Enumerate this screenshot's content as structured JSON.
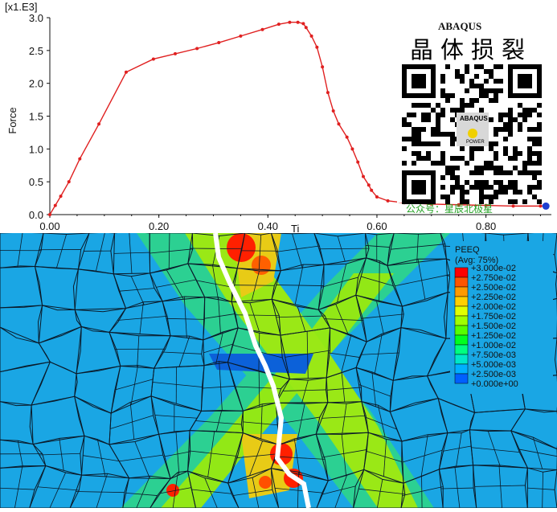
{
  "chart_data": {
    "type": "line",
    "scale_label": "[x1.E3]",
    "ylabel": "Force",
    "xlabel": "Ti",
    "xlim": [
      0,
      0.92
    ],
    "ylim": [
      0,
      3.0
    ],
    "x_ticks": [
      "0.00",
      "0.20",
      "0.40",
      "0.60",
      "0.80"
    ],
    "y_ticks": [
      "0.0",
      "0.5",
      "1.0",
      "1.5",
      "2.0",
      "2.5",
      "3.0"
    ],
    "series": [
      {
        "color": "#e02020",
        "x": [
          0,
          0.01,
          0.02,
          0.035,
          0.055,
          0.09,
          0.14,
          0.19,
          0.23,
          0.27,
          0.31,
          0.35,
          0.39,
          0.42,
          0.44,
          0.455,
          0.465,
          0.47,
          0.48,
          0.49,
          0.5,
          0.51,
          0.52,
          0.53,
          0.545,
          0.555,
          0.565,
          0.575,
          0.585,
          0.59,
          0.6,
          0.62,
          0.65,
          0.7,
          0.75,
          0.8,
          0.85,
          0.9,
          0.91
        ],
        "y": [
          0,
          0.14,
          0.28,
          0.5,
          0.85,
          1.38,
          2.17,
          2.37,
          2.45,
          2.53,
          2.62,
          2.72,
          2.82,
          2.9,
          2.93,
          2.93,
          2.91,
          2.85,
          2.72,
          2.55,
          2.25,
          1.86,
          1.58,
          1.38,
          1.18,
          1.0,
          0.8,
          0.58,
          0.45,
          0.37,
          0.27,
          0.21,
          0.18,
          0.16,
          0.15,
          0.14,
          0.13,
          0.13,
          0.13
        ]
      }
    ],
    "marker_point": {
      "x": 0.91,
      "y": 0.13,
      "color": "#1f3fd0"
    }
  },
  "watermark": {
    "brand": "ABAQUS",
    "title_cn": "晶体损裂",
    "qr_center_text": "ABAQUS",
    "qr_center_sub": "POWER",
    "account_label": "公众号：星辰北极星"
  },
  "contour_legend": {
    "title": "PEEQ",
    "subtitle": "(Avg: 75%)",
    "entries": [
      {
        "label": "+3.000e-02",
        "color": "#ff0000"
      },
      {
        "label": "+2.750e-02",
        "color": "#ff5500"
      },
      {
        "label": "+2.500e-02",
        "color": "#ff9a00"
      },
      {
        "label": "+2.250e-02",
        "color": "#ffd000"
      },
      {
        "label": "+2.000e-02",
        "color": "#e0ff00"
      },
      {
        "label": "+1.750e-02",
        "color": "#9fff00"
      },
      {
        "label": "+1.500e-02",
        "color": "#55ff00"
      },
      {
        "label": "+1.250e-02",
        "color": "#00ff20"
      },
      {
        "label": "+1.000e-02",
        "color": "#00ff80"
      },
      {
        "label": "+7.500e-03",
        "color": "#00e8c8"
      },
      {
        "label": "+5.000e-03",
        "color": "#00b0ff"
      },
      {
        "label": "+2.500e-03",
        "color": "#0060ff"
      },
      {
        "label": "+0.000e+00",
        "color": "#0010e0"
      }
    ]
  }
}
